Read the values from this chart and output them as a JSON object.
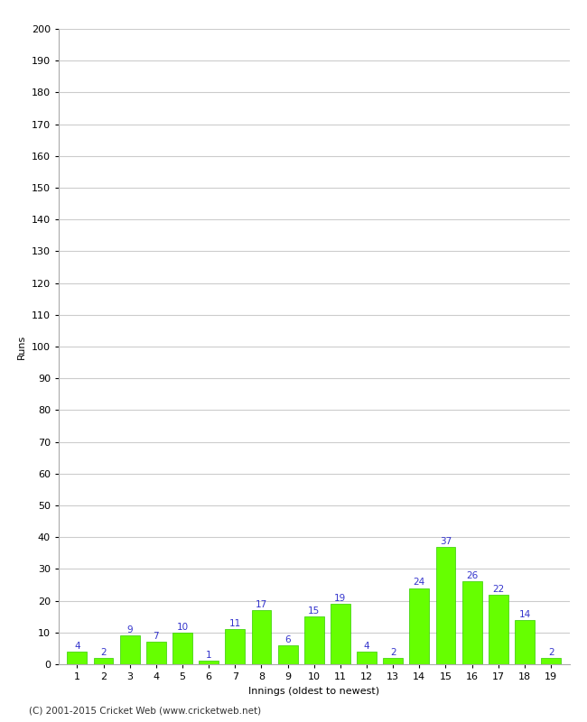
{
  "title": "",
  "xlabel": "Innings (oldest to newest)",
  "ylabel": "Runs",
  "categories": [
    1,
    2,
    3,
    4,
    5,
    6,
    7,
    8,
    9,
    10,
    11,
    12,
    13,
    14,
    15,
    16,
    17,
    18,
    19
  ],
  "values": [
    4,
    2,
    9,
    7,
    10,
    1,
    11,
    17,
    6,
    15,
    19,
    4,
    2,
    24,
    37,
    26,
    22,
    14,
    2
  ],
  "bar_color": "#66ff00",
  "bar_edge_color": "#33cc00",
  "label_color": "#3333cc",
  "ylim": [
    0,
    200
  ],
  "yticks": [
    0,
    10,
    20,
    30,
    40,
    50,
    60,
    70,
    80,
    90,
    100,
    110,
    120,
    130,
    140,
    150,
    160,
    170,
    180,
    190,
    200
  ],
  "background_color": "#ffffff",
  "footer": "(C) 2001-2015 Cricket Web (www.cricketweb.net)",
  "grid_color": "#cccccc",
  "label_fontsize": 7.5,
  "axis_label_fontsize": 8,
  "tick_fontsize": 8,
  "footer_fontsize": 7.5
}
